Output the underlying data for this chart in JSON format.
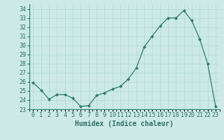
{
  "x": [
    0,
    1,
    2,
    3,
    4,
    5,
    6,
    7,
    8,
    9,
    10,
    11,
    12,
    13,
    14,
    15,
    16,
    17,
    18,
    19,
    20,
    21,
    22,
    23
  ],
  "y": [
    25.9,
    25.1,
    24.1,
    24.6,
    24.6,
    24.2,
    23.3,
    23.4,
    24.5,
    24.8,
    25.2,
    25.5,
    26.3,
    27.5,
    29.8,
    31.0,
    32.1,
    33.0,
    33.0,
    33.8,
    32.7,
    30.7,
    28.0,
    23.3
  ],
  "line_color": "#2e7d6e",
  "marker_color": "#2e7d6e",
  "bg_color": "#cce9e5",
  "grid_major_color": "#b0d8d4",
  "grid_minor_color": "#c4e4e0",
  "xlabel": "Humidex (Indice chaleur)",
  "ylim": [
    23,
    34.5
  ],
  "xlim": [
    -0.5,
    23.5
  ],
  "yticks": [
    23,
    24,
    25,
    26,
    27,
    28,
    29,
    30,
    31,
    32,
    33,
    34
  ],
  "xlabel_fontsize": 7,
  "tick_fontsize": 6,
  "marker_size": 2.0,
  "line_width": 0.9
}
